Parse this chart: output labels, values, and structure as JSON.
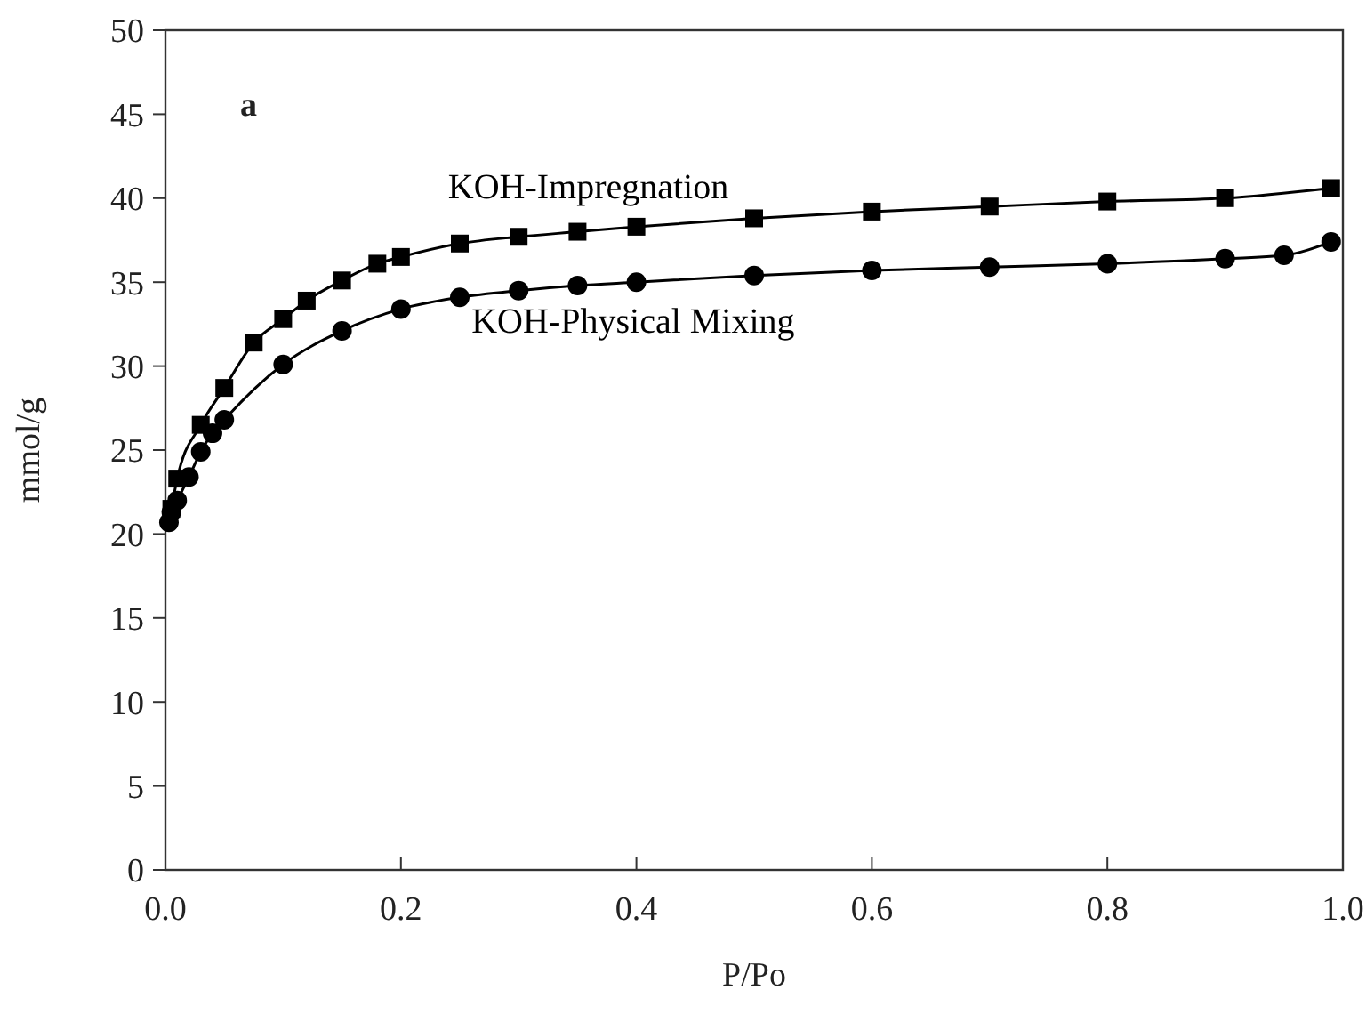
{
  "chart_data": {
    "type": "line",
    "xlabel": "P/Po",
    "ylabel": "mmol/g",
    "annotations": [
      "a"
    ],
    "xlim": [
      0,
      1
    ],
    "ylim": [
      0,
      50
    ],
    "xticks": [
      {
        "value": 0,
        "label": "0.0"
      },
      {
        "value": 0.2,
        "label": "0.2"
      },
      {
        "value": 0.4,
        "label": "0.4"
      },
      {
        "value": 0.6,
        "label": "0.6"
      },
      {
        "value": 0.8,
        "label": "0.8"
      },
      {
        "value": 1,
        "label": "1.0"
      }
    ],
    "yticks": [
      0,
      5,
      10,
      15,
      20,
      25,
      30,
      35,
      40,
      45,
      50
    ],
    "grid": false,
    "series": [
      {
        "name": "KOH-Impregnation",
        "color": "#000000",
        "marker": "square",
        "x": [
          0.005,
          0.01,
          0.03,
          0.05,
          0.075,
          0.1,
          0.12,
          0.15,
          0.18,
          0.2,
          0.25,
          0.3,
          0.35,
          0.4,
          0.5,
          0.6,
          0.7,
          0.8,
          0.9,
          0.99
        ],
        "values": [
          21.5,
          23.3,
          26.5,
          28.7,
          31.4,
          32.8,
          33.9,
          35.1,
          36.1,
          36.5,
          37.3,
          37.7,
          38.0,
          38.3,
          38.8,
          39.2,
          39.5,
          39.8,
          40.0,
          40.6
        ]
      },
      {
        "name": "KOH-Physical Mixing",
        "color": "#000000",
        "marker": "circle",
        "x": [
          0.003,
          0.005,
          0.01,
          0.02,
          0.03,
          0.04,
          0.05,
          0.1,
          0.15,
          0.2,
          0.25,
          0.3,
          0.35,
          0.4,
          0.5,
          0.6,
          0.7,
          0.8,
          0.9,
          0.95,
          0.99
        ],
        "values": [
          20.7,
          21.3,
          22.0,
          23.4,
          24.9,
          26.0,
          26.8,
          30.1,
          32.1,
          33.4,
          34.1,
          34.5,
          34.8,
          35.0,
          35.4,
          35.7,
          35.9,
          36.1,
          36.4,
          36.6,
          37.4
        ]
      }
    ]
  }
}
